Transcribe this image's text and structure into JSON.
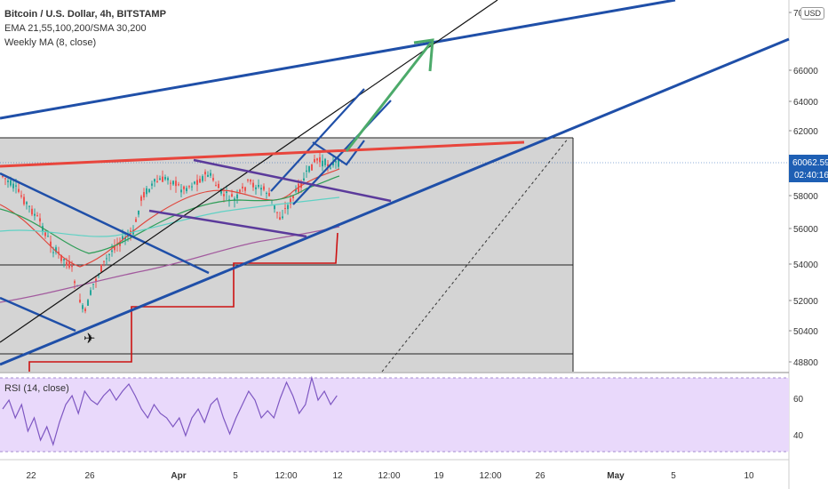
{
  "header": {
    "symbol_title": "Bitcoin / U.S. Dollar, 4h, BITSTAMP",
    "indicator_ema": "EMA 21,55,100,200/SMA 30,200",
    "indicator_weekly": "Weekly MA (8, close)",
    "currency_badge": "USD"
  },
  "rsi": {
    "label": "RSI (14, close)"
  },
  "price_badge": {
    "price": "60062.59",
    "countdown": "02:40:16",
    "color": "#1e5fb4"
  },
  "colors": {
    "blue_line": "#1f4fa8",
    "red_line": "#e8453c",
    "purple_line": "#5b3a9b",
    "green_arrow": "#4caa6a",
    "ema_red": "#e0473d",
    "ema_green": "#2e9d57",
    "ema_cyan": "#5fd1c4",
    "ma_purple": "#a25a9e",
    "step_red": "#cc1111",
    "candle_up": "#26a69a",
    "candle_down": "#ef5350",
    "rsi_line": "#7e57c2",
    "rsi_band": "#e9d9fb",
    "zone_gray": "#cfcfcf"
  },
  "chart_data": {
    "type": "candlestick",
    "price_axis_labels": [
      "70000",
      "66000",
      "64000",
      "62000",
      "58000",
      "56000",
      "54000",
      "52000",
      "50400",
      "48800"
    ],
    "rsi_axis_labels": [
      "60",
      "40"
    ],
    "time_axis_labels": [
      "22",
      "26",
      "Apr",
      "5",
      "12:00",
      "12",
      "12:00",
      "19",
      "12:00",
      "26",
      "May",
      "5",
      "10"
    ],
    "last_price": 60062.59,
    "annotations": [
      "ascending blue channel",
      "descending blue lines",
      "red resistance line",
      "purple wedge",
      "green projection arrow",
      "red step function",
      "dashed diagonal"
    ]
  }
}
